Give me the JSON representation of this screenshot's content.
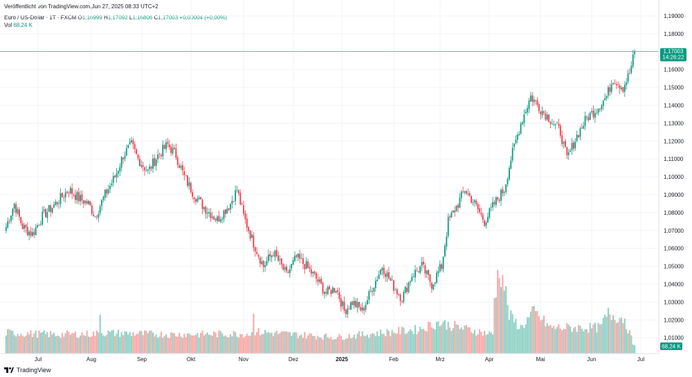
{
  "header": {
    "published": "Veröffentlicht von TradingView.com,Jun 27, 2025 08:33 UTC+2"
  },
  "legend": {
    "symbol": "Euro / US-Dollar · 1T · FXCM",
    "o_label": "O",
    "o": "1,16999",
    "h_label": "H",
    "h": "1,17092",
    "l_label": "L",
    "l": "1,16806",
    "c_label": "C",
    "c": "1,17003",
    "change": "+0,00004 (+0,00%)",
    "vol_label": "Vol",
    "vol": "68,24 K"
  },
  "price_tag": {
    "price": "1,17003",
    "countdown": "14:26:22"
  },
  "volume_tag": "68,24 K",
  "brand": {
    "name": "TradingView"
  },
  "colors": {
    "up": "#089981",
    "down": "#f23645",
    "up_vol": "#8fd1c5",
    "down_vol": "#f7a9a7",
    "grid": "#f0f3fa",
    "axis_text": "#131722"
  },
  "chart_data": {
    "type": "candlestick",
    "title": "Euro / US-Dollar · 1T · FXCM",
    "y_axis": {
      "position": "right",
      "range": [
        1.0,
        1.195
      ],
      "ticks": [
        "1,19000",
        "1,18000",
        "1,17000",
        "1,16000",
        "1,15000",
        "1,14000",
        "1,13000",
        "1,12000",
        "1,11000",
        "1,10000",
        "1,09000",
        "1,08000",
        "1,07000",
        "1,06000",
        "1,05000",
        "1,04000",
        "1,03000",
        "1,02000",
        "1,01000"
      ]
    },
    "x_axis": {
      "ticks": [
        "Jul",
        "Aug",
        "Sep",
        "Okt",
        "Nov",
        "Dez",
        "2025",
        "Feb",
        "Mrz",
        "Apr",
        "Mai",
        "Jun",
        "Jul"
      ]
    },
    "grid": true,
    "last_price": 1.17003,
    "anchors": [
      [
        0,
        1.072
      ],
      [
        5,
        1.085
      ],
      [
        10,
        1.072
      ],
      [
        16,
        1.068
      ],
      [
        22,
        1.078
      ],
      [
        30,
        1.085
      ],
      [
        38,
        1.093
      ],
      [
        44,
        1.088
      ],
      [
        50,
        1.085
      ],
      [
        54,
        1.078
      ],
      [
        60,
        1.09
      ],
      [
        66,
        1.1
      ],
      [
        71,
        1.112
      ],
      [
        76,
        1.118
      ],
      [
        80,
        1.11
      ],
      [
        86,
        1.103
      ],
      [
        92,
        1.112
      ],
      [
        98,
        1.118
      ],
      [
        103,
        1.112
      ],
      [
        108,
        1.1
      ],
      [
        114,
        1.09
      ],
      [
        120,
        1.083
      ],
      [
        128,
        1.076
      ],
      [
        136,
        1.085
      ],
      [
        140,
        1.093
      ],
      [
        144,
        1.078
      ],
      [
        150,
        1.063
      ],
      [
        156,
        1.05
      ],
      [
        162,
        1.058
      ],
      [
        170,
        1.045
      ],
      [
        176,
        1.055
      ],
      [
        182,
        1.05
      ],
      [
        188,
        1.043
      ],
      [
        194,
        1.035
      ],
      [
        200,
        1.038
      ],
      [
        205,
        1.025
      ],
      [
        210,
        1.03
      ],
      [
        216,
        1.025
      ],
      [
        222,
        1.038
      ],
      [
        228,
        1.05
      ],
      [
        234,
        1.04
      ],
      [
        240,
        1.032
      ],
      [
        246,
        1.045
      ],
      [
        252,
        1.05
      ],
      [
        258,
        1.04
      ],
      [
        264,
        1.05
      ],
      [
        268,
        1.075
      ],
      [
        274,
        1.085
      ],
      [
        278,
        1.093
      ],
      [
        284,
        1.085
      ],
      [
        290,
        1.075
      ],
      [
        296,
        1.085
      ],
      [
        302,
        1.093
      ],
      [
        306,
        1.11
      ],
      [
        312,
        1.13
      ],
      [
        318,
        1.145
      ],
      [
        324,
        1.138
      ],
      [
        330,
        1.132
      ],
      [
        336,
        1.125
      ],
      [
        340,
        1.11
      ],
      [
        346,
        1.123
      ],
      [
        352,
        1.133
      ],
      [
        358,
        1.138
      ],
      [
        364,
        1.145
      ],
      [
        368,
        1.155
      ],
      [
        374,
        1.15
      ],
      [
        378,
        1.158
      ],
      [
        381,
        1.17
      ]
    ],
    "volume_range": [
      0,
      52000
    ],
    "volume_anchors": [
      [
        0,
        12000
      ],
      [
        30,
        11000
      ],
      [
        56,
        11500
      ],
      [
        57,
        27000
      ],
      [
        58,
        12000
      ],
      [
        100,
        11000
      ],
      [
        149,
        11500
      ],
      [
        150,
        28000
      ],
      [
        151,
        12500
      ],
      [
        200,
        9500
      ],
      [
        250,
        14000
      ],
      [
        262,
        18000
      ],
      [
        280,
        14000
      ],
      [
        295,
        11000
      ],
      [
        296,
        32000
      ],
      [
        299,
        50000
      ],
      [
        302,
        40000
      ],
      [
        305,
        22000
      ],
      [
        312,
        15000
      ],
      [
        320,
        24000
      ],
      [
        330,
        15000
      ],
      [
        360,
        15000
      ],
      [
        365,
        23000
      ],
      [
        375,
        20000
      ],
      [
        380,
        6000
      ]
    ]
  }
}
